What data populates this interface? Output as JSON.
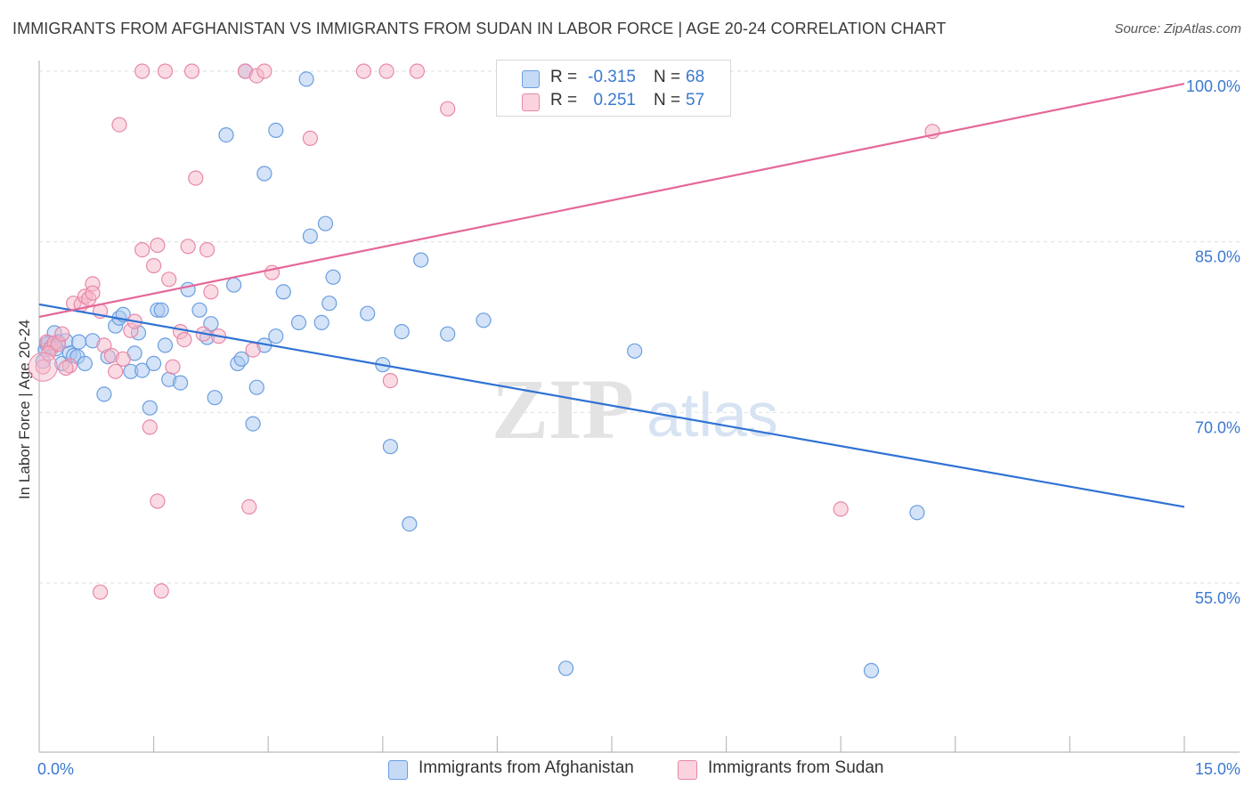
{
  "title": "IMMIGRANTS FROM AFGHANISTAN VS IMMIGRANTS FROM SUDAN IN LABOR FORCE | AGE 20-24 CORRELATION CHART",
  "source": "Source: ZipAtlas.com",
  "watermark": {
    "zip": "ZIP",
    "atlas": "atlas"
  },
  "legend_stats": [
    {
      "r_label": "R =",
      "r_value": "-0.315",
      "n_label": "N =",
      "n_value": "68",
      "color": "#a9c8f0"
    },
    {
      "r_label": "R =",
      "r_value": "0.251",
      "n_label": "N =",
      "n_value": "57",
      "color": "#f6b7c9"
    }
  ],
  "colors": {
    "blue_fill": "#a9c8f0",
    "blue_stroke": "#6a9ee0",
    "blue_line": "#2f72d4",
    "pink_fill": "#f6b7c9",
    "pink_stroke": "#e888a6",
    "pink_line": "#e4689a",
    "axis_tick_text": "#3b78d0",
    "grid": "#dedede"
  },
  "chart_data": {
    "type": "scatter",
    "title": "IMMIGRANTS FROM AFGHANISTAN VS IMMIGRANTS FROM SUDAN IN LABOR FORCE | AGE 20-24 CORRELATION CHART",
    "xlabel": "",
    "ylabel": "In Labor Force | Age 20-24",
    "xlim": [
      0,
      15
    ],
    "ylim": [
      40,
      101.5
    ],
    "x_tick_labels": [
      {
        "value": 0,
        "label": "0.0%"
      },
      {
        "value": 15,
        "label": "15.0%"
      }
    ],
    "y_tick_labels": [
      {
        "value": 100,
        "label": "100.0%"
      },
      {
        "value": 85,
        "label": "85.0%"
      },
      {
        "value": 70,
        "label": "70.0%"
      },
      {
        "value": 55,
        "label": "55.0%"
      }
    ],
    "x_minor_ticks": [
      1.5,
      3.0,
      4.5,
      6.0,
      7.5,
      9.0,
      10.5,
      12.0,
      13.5,
      15.0
    ],
    "grid": true,
    "legend_position": "bottom",
    "series": [
      {
        "name": "Immigrants from Afghanistan",
        "color": "#a9c8f0",
        "trend": {
          "x": [
            0,
            15
          ],
          "y": [
            79.5,
            61.7
          ]
        },
        "points": [
          [
            0.05,
            74.5
          ],
          [
            0.08,
            75.5
          ],
          [
            0.1,
            76.0
          ],
          [
            0.15,
            75.8
          ],
          [
            0.2,
            77.0
          ],
          [
            0.25,
            76.2
          ],
          [
            0.3,
            74.3
          ],
          [
            0.35,
            76.3
          ],
          [
            0.4,
            75.2
          ],
          [
            0.45,
            75.0
          ],
          [
            0.5,
            74.9
          ],
          [
            0.6,
            74.3
          ],
          [
            0.7,
            76.3
          ],
          [
            0.85,
            71.6
          ],
          [
            0.9,
            74.9
          ],
          [
            1.0,
            77.6
          ],
          [
            1.05,
            78.3
          ],
          [
            1.1,
            78.6
          ],
          [
            1.2,
            73.6
          ],
          [
            1.25,
            75.2
          ],
          [
            1.3,
            77.0
          ],
          [
            1.35,
            73.7
          ],
          [
            1.45,
            70.4
          ],
          [
            1.5,
            74.3
          ],
          [
            1.55,
            79.0
          ],
          [
            1.6,
            79.0
          ],
          [
            1.65,
            75.9
          ],
          [
            1.7,
            72.9
          ],
          [
            1.85,
            72.6
          ],
          [
            1.95,
            80.8
          ],
          [
            2.1,
            79.0
          ],
          [
            2.2,
            76.6
          ],
          [
            2.25,
            77.8
          ],
          [
            2.3,
            71.3
          ],
          [
            2.45,
            94.4
          ],
          [
            2.55,
            81.2
          ],
          [
            2.6,
            74.3
          ],
          [
            2.65,
            74.7
          ],
          [
            2.7,
            100.0
          ],
          [
            2.8,
            69.0
          ],
          [
            2.85,
            72.2
          ],
          [
            2.95,
            75.9
          ],
          [
            2.95,
            91.0
          ],
          [
            3.1,
            94.8
          ],
          [
            3.1,
            76.7
          ],
          [
            3.2,
            80.6
          ],
          [
            3.4,
            77.9
          ],
          [
            3.5,
            99.3
          ],
          [
            3.55,
            85.5
          ],
          [
            3.7,
            77.9
          ],
          [
            3.75,
            86.6
          ],
          [
            3.8,
            79.6
          ],
          [
            3.85,
            81.9
          ],
          [
            4.3,
            78.7
          ],
          [
            4.5,
            74.2
          ],
          [
            4.6,
            67.0
          ],
          [
            4.75,
            77.1
          ],
          [
            4.85,
            60.2
          ],
          [
            5.0,
            83.4
          ],
          [
            5.35,
            76.9
          ],
          [
            5.82,
            78.1
          ],
          [
            6.9,
            47.5
          ],
          [
            7.8,
            75.4
          ],
          [
            11.5,
            61.2
          ],
          [
            10.9,
            47.3
          ],
          [
            0.12,
            76.1
          ],
          [
            0.22,
            75.6
          ],
          [
            0.52,
            76.2
          ]
        ]
      },
      {
        "name": "Immigrants from Sudan",
        "color": "#f6b7c9",
        "trend": {
          "x": [
            0,
            15
          ],
          "y": [
            78.4,
            98.9
          ]
        },
        "points": [
          [
            0.05,
            74.0
          ],
          [
            0.1,
            76.2
          ],
          [
            0.15,
            75.6
          ],
          [
            0.2,
            76.1
          ],
          [
            0.25,
            76.0
          ],
          [
            0.3,
            76.9
          ],
          [
            0.4,
            74.1
          ],
          [
            0.45,
            79.6
          ],
          [
            0.55,
            79.5
          ],
          [
            0.6,
            80.2
          ],
          [
            0.65,
            80.0
          ],
          [
            0.7,
            81.3
          ],
          [
            0.7,
            80.5
          ],
          [
            0.8,
            78.9
          ],
          [
            0.85,
            75.9
          ],
          [
            0.95,
            75.0
          ],
          [
            1.0,
            73.6
          ],
          [
            1.05,
            95.3
          ],
          [
            1.1,
            74.7
          ],
          [
            1.2,
            77.2
          ],
          [
            1.25,
            78.0
          ],
          [
            1.35,
            100.0
          ],
          [
            1.35,
            84.3
          ],
          [
            1.45,
            68.7
          ],
          [
            1.5,
            82.9
          ],
          [
            1.55,
            84.7
          ],
          [
            1.55,
            62.2
          ],
          [
            1.6,
            54.3
          ],
          [
            1.65,
            100.0
          ],
          [
            1.7,
            81.7
          ],
          [
            1.75,
            74.0
          ],
          [
            1.85,
            77.1
          ],
          [
            1.9,
            76.4
          ],
          [
            1.95,
            84.6
          ],
          [
            2.0,
            100.0
          ],
          [
            2.05,
            90.6
          ],
          [
            2.15,
            76.9
          ],
          [
            2.2,
            84.3
          ],
          [
            2.25,
            80.6
          ],
          [
            2.35,
            76.7
          ],
          [
            2.7,
            100.0
          ],
          [
            2.75,
            61.7
          ],
          [
            2.8,
            75.5
          ],
          [
            2.85,
            99.6
          ],
          [
            2.95,
            100.0
          ],
          [
            3.05,
            82.3
          ],
          [
            3.55,
            94.1
          ],
          [
            4.25,
            100.0
          ],
          [
            4.55,
            100.0
          ],
          [
            4.6,
            72.8
          ],
          [
            4.95,
            100.0
          ],
          [
            5.35,
            96.7
          ],
          [
            10.5,
            61.5
          ],
          [
            11.7,
            94.7
          ],
          [
            0.8,
            54.2
          ],
          [
            0.12,
            75.2
          ],
          [
            0.35,
            73.9
          ]
        ]
      }
    ]
  }
}
